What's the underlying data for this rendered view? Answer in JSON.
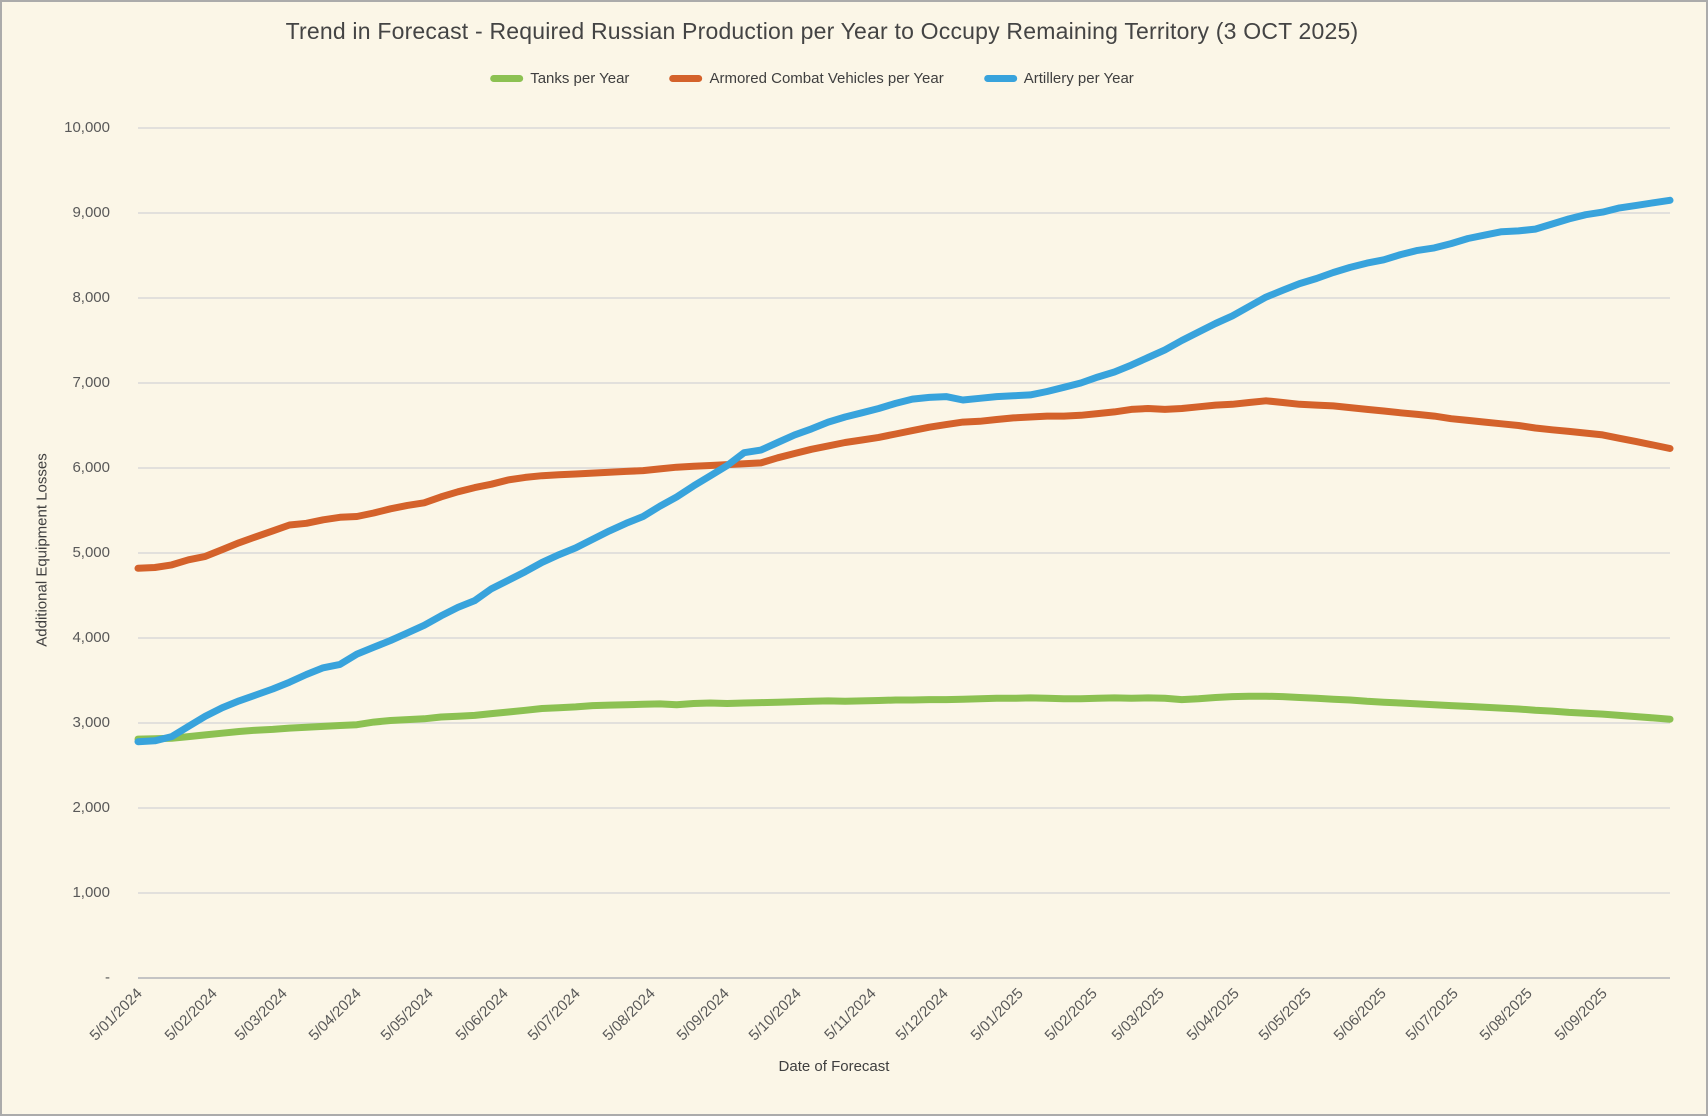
{
  "colors": {
    "background": "#FBF6E7",
    "border": "#ABABAB",
    "gridline": "#D9D9D9",
    "zero_axis_line": "#C4C4C4",
    "tick_text": "#595959",
    "title_text": "#444444",
    "label_text": "#3F3F3F"
  },
  "chart_data": {
    "type": "line",
    "title": "Trend in Forecast - Required Russian Production per Year to Occupy Remaining Territory (3 OCT 2025)",
    "xlabel": "Date of Forecast",
    "ylabel": "Additional Equipment Losses",
    "ylim": [
      0,
      10000
    ],
    "grid": "horizontal",
    "legend_position": "top",
    "y_tick_labels": [
      "10,000",
      "9,000",
      "8,000",
      "7,000",
      "6,000",
      "5,000",
      "4,000",
      "3,000",
      "2,000",
      "1,000",
      "-"
    ],
    "x_tick_labels": [
      "5/01/2024",
      "5/02/2024",
      "5/03/2024",
      "5/04/2024",
      "5/05/2024",
      "5/06/2024",
      "5/07/2024",
      "5/08/2024",
      "5/09/2024",
      "5/10/2024",
      "5/11/2024",
      "5/12/2024",
      "5/01/2025",
      "5/02/2025",
      "5/03/2025",
      "5/04/2025",
      "5/05/2025",
      "5/06/2025",
      "5/07/2025",
      "5/08/2025",
      "5/09/2025"
    ],
    "x_tick_days": [
      0,
      31,
      60,
      91,
      121,
      152,
      182,
      213,
      244,
      274,
      305,
      335,
      366,
      397,
      425,
      456,
      486,
      517,
      547,
      578,
      609
    ],
    "total_days": 637,
    "interval_days": 7,
    "series": [
      {
        "name": "Tanks per Year",
        "color": "#8CC152",
        "values": [
          2810,
          2815,
          2820,
          2840,
          2860,
          2880,
          2900,
          2915,
          2925,
          2940,
          2950,
          2960,
          2970,
          2980,
          3010,
          3030,
          3040,
          3050,
          3070,
          3080,
          3090,
          3110,
          3130,
          3150,
          3170,
          3180,
          3190,
          3205,
          3210,
          3215,
          3220,
          3225,
          3215,
          3230,
          3235,
          3230,
          3235,
          3240,
          3245,
          3250,
          3255,
          3260,
          3255,
          3260,
          3265,
          3270,
          3270,
          3275,
          3275,
          3280,
          3285,
          3290,
          3290,
          3295,
          3290,
          3285,
          3285,
          3290,
          3295,
          3290,
          3295,
          3290,
          3275,
          3285,
          3300,
          3310,
          3315,
          3315,
          3310,
          3300,
          3290,
          3280,
          3270,
          3255,
          3245,
          3235,
          3225,
          3215,
          3205,
          3195,
          3185,
          3175,
          3165,
          3150,
          3140,
          3125,
          3115,
          3105,
          3090,
          3075,
          3060,
          3045
        ]
      },
      {
        "name": "Armored Combat Vehicles per Year",
        "color": "#D4622B",
        "values": [
          4820,
          4830,
          4860,
          4920,
          4960,
          5040,
          5120,
          5190,
          5260,
          5330,
          5350,
          5390,
          5420,
          5430,
          5470,
          5520,
          5560,
          5590,
          5660,
          5720,
          5770,
          5810,
          5860,
          5890,
          5910,
          5920,
          5930,
          5940,
          5950,
          5960,
          5970,
          5990,
          6010,
          6020,
          6030,
          6040,
          6050,
          6060,
          6120,
          6170,
          6220,
          6260,
          6300,
          6330,
          6360,
          6400,
          6440,
          6480,
          6510,
          6540,
          6550,
          6570,
          6590,
          6600,
          6610,
          6610,
          6620,
          6640,
          6660,
          6690,
          6700,
          6690,
          6700,
          6720,
          6740,
          6750,
          6770,
          6790,
          6770,
          6750,
          6740,
          6730,
          6710,
          6690,
          6670,
          6650,
          6630,
          6610,
          6580,
          6560,
          6540,
          6520,
          6500,
          6470,
          6450,
          6430,
          6410,
          6390,
          6350,
          6310,
          6270,
          6230
        ]
      },
      {
        "name": "Artillery per Year",
        "color": "#38A3DC",
        "values": [
          2780,
          2790,
          2840,
          2960,
          3080,
          3180,
          3260,
          3330,
          3400,
          3480,
          3570,
          3650,
          3690,
          3810,
          3890,
          3970,
          4060,
          4150,
          4260,
          4360,
          4440,
          4580,
          4680,
          4780,
          4890,
          4980,
          5060,
          5160,
          5260,
          5350,
          5430,
          5550,
          5660,
          5790,
          5910,
          6030,
          6180,
          6210,
          6300,
          6390,
          6460,
          6540,
          6600,
          6650,
          6700,
          6760,
          6810,
          6830,
          6840,
          6800,
          6820,
          6840,
          6850,
          6860,
          6900,
          6950,
          7000,
          7070,
          7130,
          7210,
          7300,
          7390,
          7500,
          7600,
          7700,
          7790,
          7900,
          8010,
          8090,
          8170,
          8230,
          8300,
          8360,
          8410,
          8450,
          8510,
          8560,
          8590,
          8640,
          8700,
          8740,
          8780,
          8790,
          8810,
          8870,
          8930,
          8980,
          9010,
          9060,
          9090,
          9120,
          9150
        ]
      }
    ]
  }
}
